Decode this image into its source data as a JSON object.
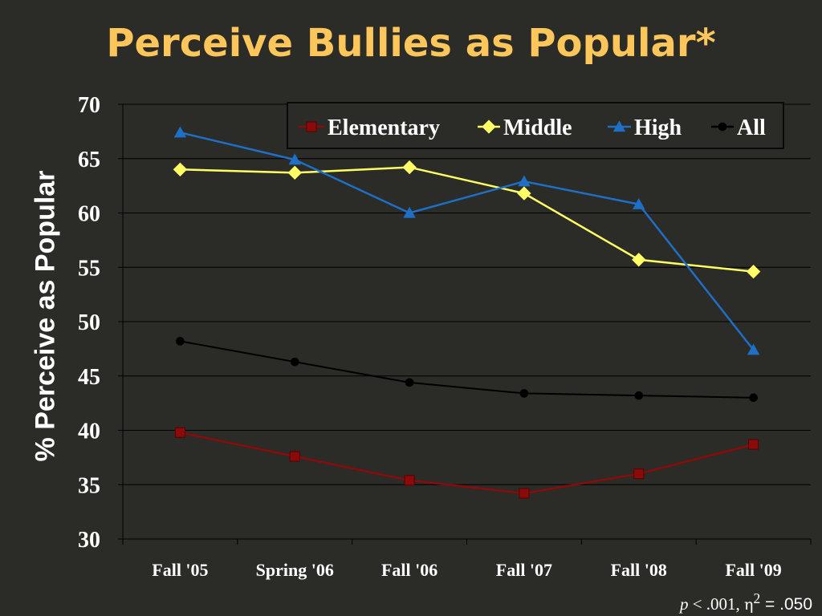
{
  "slide": {
    "title": "Perceive Bullies as Popular*",
    "footnote": {
      "p_symbol": "p",
      "p_value": " < .001, ",
      "eta_symbol": "η",
      "eta_sup": "2",
      "eta_value": " = .050"
    }
  },
  "chart_data": {
    "type": "line",
    "title": "",
    "ylabel": "% Perceive as Popular",
    "xlabel": "",
    "ylim": [
      30,
      70
    ],
    "y_ticks": [
      30,
      35,
      40,
      45,
      50,
      55,
      60,
      65,
      70
    ],
    "grid": true,
    "legend_placement": "top-right",
    "categories": [
      "Fall '05",
      "Spring '06",
      "Fall '06",
      "Fall '07",
      "Fall '08",
      "Fall '09"
    ],
    "series": [
      {
        "name": "Elementary",
        "values": [
          39.8,
          37.6,
          35.4,
          34.2,
          36.0,
          38.7
        ],
        "color": "#8b0a0a",
        "marker": "square"
      },
      {
        "name": "Middle",
        "values": [
          64.0,
          63.7,
          64.2,
          61.8,
          55.7,
          54.6
        ],
        "color": "#ffff66",
        "marker": "diamond"
      },
      {
        "name": "High",
        "values": [
          67.4,
          64.9,
          60.0,
          62.9,
          60.8,
          47.4
        ],
        "color": "#1f6fc6",
        "marker": "triangle"
      },
      {
        "name": "All",
        "values": [
          48.2,
          46.3,
          44.4,
          43.4,
          43.2,
          43.0
        ],
        "color": "#000000",
        "marker": "circle"
      }
    ]
  }
}
